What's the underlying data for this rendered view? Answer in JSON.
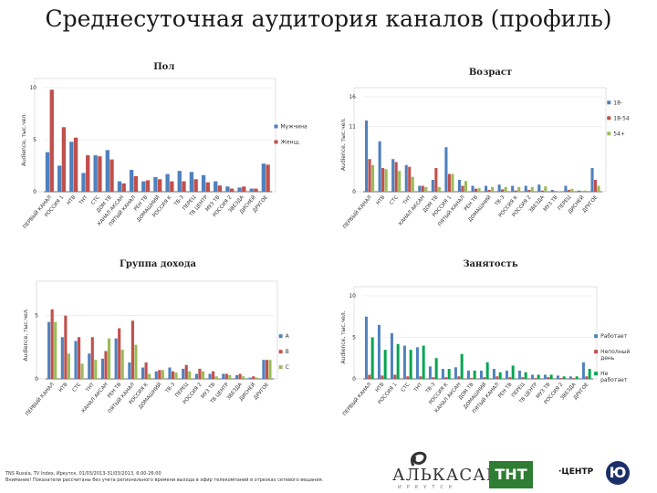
{
  "page_title": "Среднесуточная аудитория каналов (профиль)",
  "source_lines": [
    "TNS Russia, TV Index, Иркутск, 01/03/2013-31/03/2013, 6:00-26:00",
    "Внимание! Показатели рассчитаны без учета регионального времени выхода в эфир телекомпаний в отрезках сетевого вещания."
  ],
  "logos": {
    "alkasar": "АЛЬКАСАР",
    "alkasar_sub": "ИРКУТСК",
    "tnt": "ТНТ",
    "center": "·ЦЕНТР",
    "u": "Ю"
  },
  "chart_data": [
    {
      "type": "bar",
      "title": "Пол",
      "ylabel": "Audience, тыс.чел.",
      "ylim": [
        0,
        10
      ],
      "yticks": [
        0,
        5,
        10
      ],
      "colors": [
        "#4f81bd",
        "#c0504d"
      ],
      "legend_position": "right",
      "categories": [
        "ПЕРВЫЙ КАНАЛ",
        "РОССИЯ 1",
        "НТВ",
        "ТНТ",
        "СТС",
        "ДОМ ТВ",
        "КАНАЛ АКСАН",
        "ПЯТЫЙ КАНАЛ",
        "РЕН ТВ",
        "ДОМАШНИЙ",
        "РОССИЯ К",
        "ТВ-3",
        "ПЕРЕЦ",
        "ТВ ЦЕНТР",
        "МУЗ ТВ",
        "РОССИЯ 2",
        "ЗВЕЗДА",
        "ДИСНЕЙ",
        "ДРУГОЕ"
      ],
      "series": [
        {
          "name": "Мужчина",
          "values": [
            3.8,
            2.5,
            4.8,
            1.8,
            3.5,
            4.0,
            1.0,
            2.1,
            1.0,
            1.4,
            1.7,
            2.0,
            1.9,
            1.6,
            1.0,
            0.5,
            0.4,
            0.3,
            2.7
          ]
        },
        {
          "name": "Женщ.",
          "values": [
            9.8,
            6.2,
            5.2,
            3.5,
            3.4,
            3.1,
            0.8,
            1.5,
            1.1,
            1.2,
            1.0,
            1.0,
            1.2,
            0.9,
            0.6,
            0.3,
            0.5,
            0.3,
            2.6
          ]
        }
      ]
    },
    {
      "type": "bar",
      "title": "Возраст",
      "ylabel": "Audience, тыс.чел.",
      "ylim": [
        0,
        16
      ],
      "yticks": [
        0,
        11,
        16
      ],
      "colors": [
        "#4f81bd",
        "#c0504d",
        "#9bbb59"
      ],
      "legend_position": "right",
      "categories": [
        "ПЕРВЫЙ КАНАЛ",
        "НТВ",
        "СТС",
        "ТНТ",
        "КАНАЛ АКСАН",
        "ДОМ ТВ",
        "РОССИЯ 1",
        "ПЯТЫЙ КАНАЛ",
        "РЕН ТВ",
        "ДОМАШНИЙ",
        "ТВ-3",
        "РОССИЯ К",
        "РОССИЯ 2",
        "ЗВЕЗДА",
        "МУЗ ТВ",
        "ПЕРЕЦ",
        "ДИСНЕЙ",
        "ДРУГОЕ"
      ],
      "series": [
        {
          "name": "18-",
          "values": [
            12.0,
            8.5,
            5.5,
            4.5,
            1.0,
            2.0,
            7.5,
            2.0,
            1.0,
            1.0,
            1.2,
            1.0,
            1.0,
            1.2,
            0.3,
            1.0,
            0.2,
            4.0
          ]
        },
        {
          "name": "18-54",
          "values": [
            5.5,
            4.0,
            5.0,
            4.2,
            1.0,
            4.0,
            3.0,
            1.0,
            0.5,
            0.3,
            0.4,
            0.2,
            0.3,
            0.2,
            0.1,
            0.3,
            0.1,
            2.0
          ]
        },
        {
          "name": "54+",
          "values": [
            4.5,
            3.8,
            3.5,
            2.5,
            0.8,
            0.8,
            3.0,
            1.8,
            0.6,
            0.8,
            0.8,
            0.8,
            0.8,
            0.9,
            0.1,
            0.5,
            0.2,
            1.0
          ]
        }
      ]
    },
    {
      "type": "bar",
      "title": "Группа дохода",
      "ylabel": "Audience, тыс.чел.",
      "ylim": [
        0,
        7
      ],
      "yticks": [
        0,
        5
      ],
      "colors": [
        "#4f81bd",
        "#c0504d",
        "#9bbb59"
      ],
      "legend_position": "right",
      "categories": [
        "ПЕРВЫЙ КАНАЛ",
        "НТВ",
        "СТС",
        "ТНТ",
        "КАНАЛ АКСАН",
        "РЕН ТВ",
        "ПЯТЫЙ КАНАЛ",
        "РОССИЯ К",
        "ДОМАШНИЙ",
        "ТВ-3",
        "ПЕРЕЦ",
        "РОССИЯ 2",
        "МУЗ ТВ",
        "ТВ ЦЕНТР",
        "ЗВЕЗДА",
        "ДИСНЕЙ",
        "ДРУГОЕ"
      ],
      "series": [
        {
          "name": "А",
          "values": [
            4.5,
            3.3,
            3.0,
            2.0,
            1.6,
            3.2,
            1.3,
            0.9,
            0.6,
            0.9,
            0.8,
            0.4,
            0.4,
            0.4,
            0.3,
            0.1,
            1.5
          ]
        },
        {
          "name": "В",
          "values": [
            5.5,
            5.0,
            3.3,
            3.3,
            2.2,
            4.0,
            4.6,
            1.3,
            0.7,
            0.6,
            1.1,
            0.8,
            0.6,
            0.4,
            0.4,
            0.2,
            1.5
          ]
        },
        {
          "name": "С",
          "values": [
            4.5,
            2.0,
            1.2,
            1.5,
            3.2,
            2.3,
            2.7,
            0.4,
            0.7,
            0.5,
            0.6,
            0.6,
            0.2,
            0.3,
            0.2,
            0.1,
            1.5
          ]
        }
      ]
    },
    {
      "type": "bar",
      "title": "Занятость",
      "ylabel": "Audience, тыс.чел.",
      "ylim": [
        0,
        10
      ],
      "yticks": [
        0,
        5,
        10
      ],
      "colors": [
        "#4f81bd",
        "#c0504d",
        "#00a550"
      ],
      "legend_position": "right",
      "categories": [
        "ПЕРВЫЙ КАНАЛ",
        "НТВ",
        "РОССИЯ 1",
        "СТС",
        "ТНТ",
        "ТВ-3",
        "РОССИЯ К",
        "КАНАЛ АКСАН",
        "ДОМ ТВ",
        "ДОМАШНИЙ",
        "ПЯТЫЙ КАНАЛ",
        "РЕН ТВ",
        "ПЕРЕЦ",
        "ТВ ЦЕНТР",
        "МУЗ ТВ",
        "РОССИЯ 2",
        "ЗВЕЗДА",
        "ДРУГОЕ"
      ],
      "series": [
        {
          "name": "Работает",
          "values": [
            7.5,
            6.5,
            5.5,
            4.0,
            3.8,
            1.5,
            1.2,
            1.4,
            1.0,
            1.0,
            1.2,
            1.0,
            1.0,
            0.5,
            0.5,
            0.4,
            0.3,
            2.0
          ]
        },
        {
          "name": "Неполный день",
          "values": [
            0.5,
            0.4,
            0.5,
            0.3,
            0.3,
            0.2,
            0.2,
            0.3,
            0.1,
            0.2,
            0.3,
            0.2,
            0.2,
            0.1,
            0.2,
            0.1,
            0.1,
            0.3
          ]
        },
        {
          "name": "Не работает",
          "values": [
            5.0,
            3.5,
            4.2,
            3.5,
            4.0,
            2.5,
            1.2,
            3.0,
            1.0,
            2.0,
            0.8,
            1.6,
            0.8,
            0.5,
            0.5,
            0.3,
            0.3,
            1.2
          ]
        }
      ]
    }
  ]
}
